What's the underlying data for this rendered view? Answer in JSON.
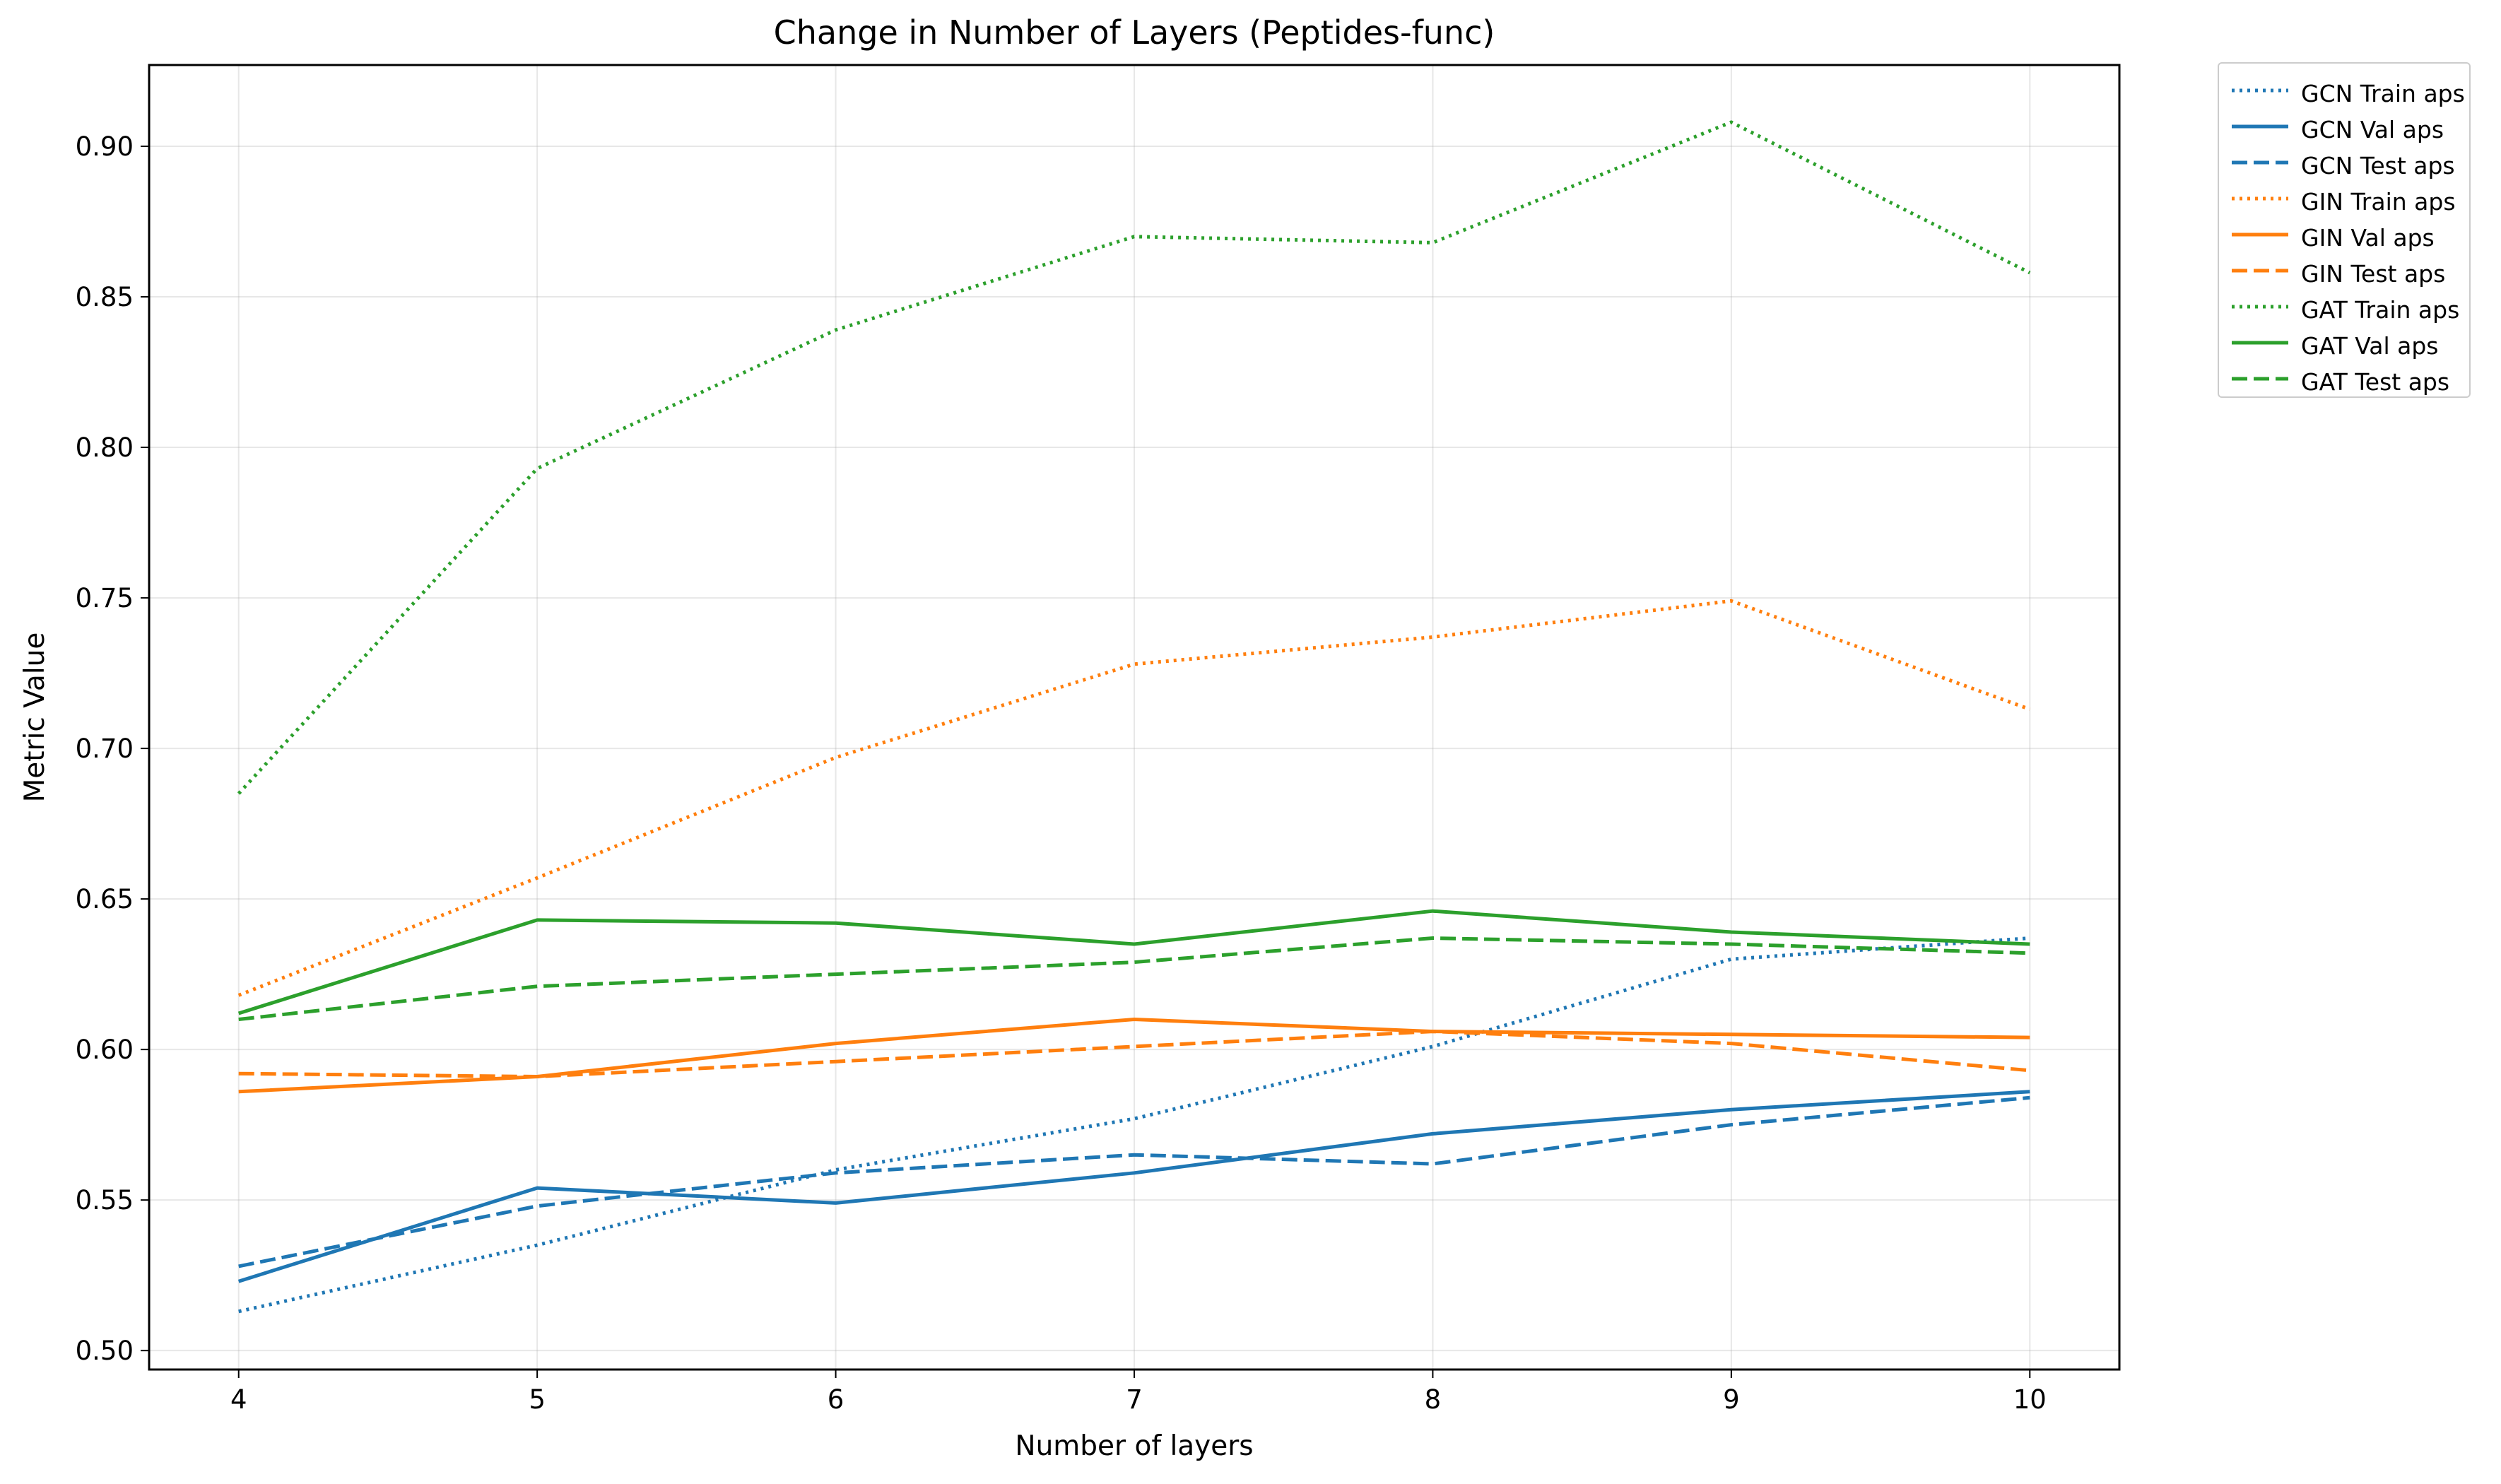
{
  "chart_data": {
    "type": "line",
    "title": "Change in Number of Layers (Peptides-func)",
    "xlabel": "Number of layers",
    "ylabel": "Metric Value",
    "x": [
      4,
      5,
      6,
      7,
      8,
      9,
      10
    ],
    "xlim": [
      3.7,
      10.3
    ],
    "ylim": [
      0.4937,
      0.927
    ],
    "xticks": [
      "4",
      "5",
      "6",
      "7",
      "8",
      "9",
      "10"
    ],
    "yticks": [
      "0.50",
      "0.55",
      "0.60",
      "0.65",
      "0.70",
      "0.75",
      "0.80",
      "0.85",
      "0.90"
    ],
    "grid": true,
    "legend_position": "outside-top-right",
    "series": [
      {
        "name": "GCN Train aps",
        "color": "#1f77b4",
        "style": "dotted",
        "values": [
          0.513,
          0.535,
          0.56,
          0.577,
          0.601,
          0.63,
          0.637
        ]
      },
      {
        "name": "GCN Val aps",
        "color": "#1f77b4",
        "style": "solid",
        "values": [
          0.523,
          0.554,
          0.549,
          0.559,
          0.572,
          0.58,
          0.586
        ]
      },
      {
        "name": "GCN Test aps",
        "color": "#1f77b4",
        "style": "dashed",
        "values": [
          0.528,
          0.548,
          0.559,
          0.565,
          0.562,
          0.575,
          0.584
        ]
      },
      {
        "name": "GIN Train aps",
        "color": "#ff7f0e",
        "style": "dotted",
        "values": [
          0.618,
          0.657,
          0.697,
          0.728,
          0.737,
          0.749,
          0.713
        ]
      },
      {
        "name": "GIN Val aps",
        "color": "#ff7f0e",
        "style": "solid",
        "values": [
          0.586,
          0.591,
          0.602,
          0.61,
          0.606,
          0.605,
          0.604
        ]
      },
      {
        "name": "GIN Test aps",
        "color": "#ff7f0e",
        "style": "dashed",
        "values": [
          0.592,
          0.591,
          0.596,
          0.601,
          0.606,
          0.602,
          0.593
        ]
      },
      {
        "name": "GAT Train aps",
        "color": "#2ca02c",
        "style": "dotted",
        "values": [
          0.685,
          0.793,
          0.839,
          0.87,
          0.868,
          0.908,
          0.858
        ]
      },
      {
        "name": "GAT Val aps",
        "color": "#2ca02c",
        "style": "solid",
        "values": [
          0.612,
          0.643,
          0.642,
          0.635,
          0.646,
          0.639,
          0.635
        ]
      },
      {
        "name": "GAT Test aps",
        "color": "#2ca02c",
        "style": "dashed",
        "values": [
          0.61,
          0.621,
          0.625,
          0.629,
          0.637,
          0.635,
          0.632
        ]
      }
    ]
  }
}
